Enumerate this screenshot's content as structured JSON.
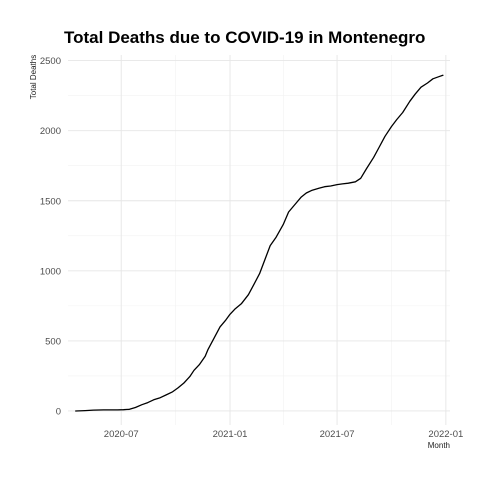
{
  "chart_data": {
    "type": "line",
    "title": "Total Deaths due to COVID-19 in Montenegro",
    "xlabel": "Month",
    "ylabel": "Total Deaths",
    "xlim": [
      "2020-04-02",
      "2022-01-08"
    ],
    "ylim": [
      -100,
      2540
    ],
    "y_ticks": [
      0,
      500,
      1000,
      1500,
      2000,
      2500
    ],
    "x_ticks": [
      {
        "date": "2020-07-01",
        "label": "2020-07"
      },
      {
        "date": "2021-01-01",
        "label": "2021-01"
      },
      {
        "date": "2021-07-01",
        "label": "2021-07"
      },
      {
        "date": "2022-01-01",
        "label": "2022-01"
      }
    ],
    "grid": true,
    "series": [
      {
        "x": [
          "2020-04-15",
          "2020-05-01",
          "2020-05-15",
          "2020-06-01",
          "2020-06-15",
          "2020-06-25",
          "2020-07-05",
          "2020-07-15",
          "2020-07-25",
          "2020-08-05",
          "2020-08-15",
          "2020-08-25",
          "2020-09-05",
          "2020-09-15",
          "2020-09-25",
          "2020-10-05",
          "2020-10-15",
          "2020-10-25",
          "2020-11-01",
          "2020-11-10",
          "2020-11-20",
          "2020-11-25",
          "2020-12-05",
          "2020-12-15",
          "2020-12-25",
          "2021-01-01",
          "2021-01-10",
          "2021-01-20",
          "2021-02-01",
          "2021-02-10",
          "2021-02-20",
          "2021-03-01",
          "2021-03-10",
          "2021-03-20",
          "2021-04-01",
          "2021-04-10",
          "2021-04-20",
          "2021-05-01",
          "2021-05-10",
          "2021-05-20",
          "2021-06-01",
          "2021-06-10",
          "2021-06-20",
          "2021-07-01",
          "2021-07-10",
          "2021-07-20",
          "2021-08-01",
          "2021-08-10",
          "2021-08-20",
          "2021-09-01",
          "2021-09-10",
          "2021-09-20",
          "2021-10-01",
          "2021-10-10",
          "2021-10-20",
          "2021-11-01",
          "2021-11-10",
          "2021-11-20",
          "2021-12-01",
          "2021-12-10",
          "2021-12-20",
          "2021-12-27"
        ],
        "y": [
          0,
          3,
          6,
          8,
          8,
          8,
          9,
          12,
          25,
          45,
          60,
          80,
          95,
          115,
          135,
          165,
          200,
          245,
          290,
          330,
          390,
          440,
          520,
          600,
          650,
          690,
          730,
          765,
          830,
          900,
          980,
          1080,
          1180,
          1240,
          1330,
          1420,
          1470,
          1525,
          1555,
          1575,
          1590,
          1600,
          1605,
          1615,
          1620,
          1625,
          1635,
          1660,
          1730,
          1810,
          1880,
          1960,
          2030,
          2080,
          2130,
          2210,
          2260,
          2310,
          2340,
          2370,
          2385,
          2395
        ]
      }
    ]
  }
}
